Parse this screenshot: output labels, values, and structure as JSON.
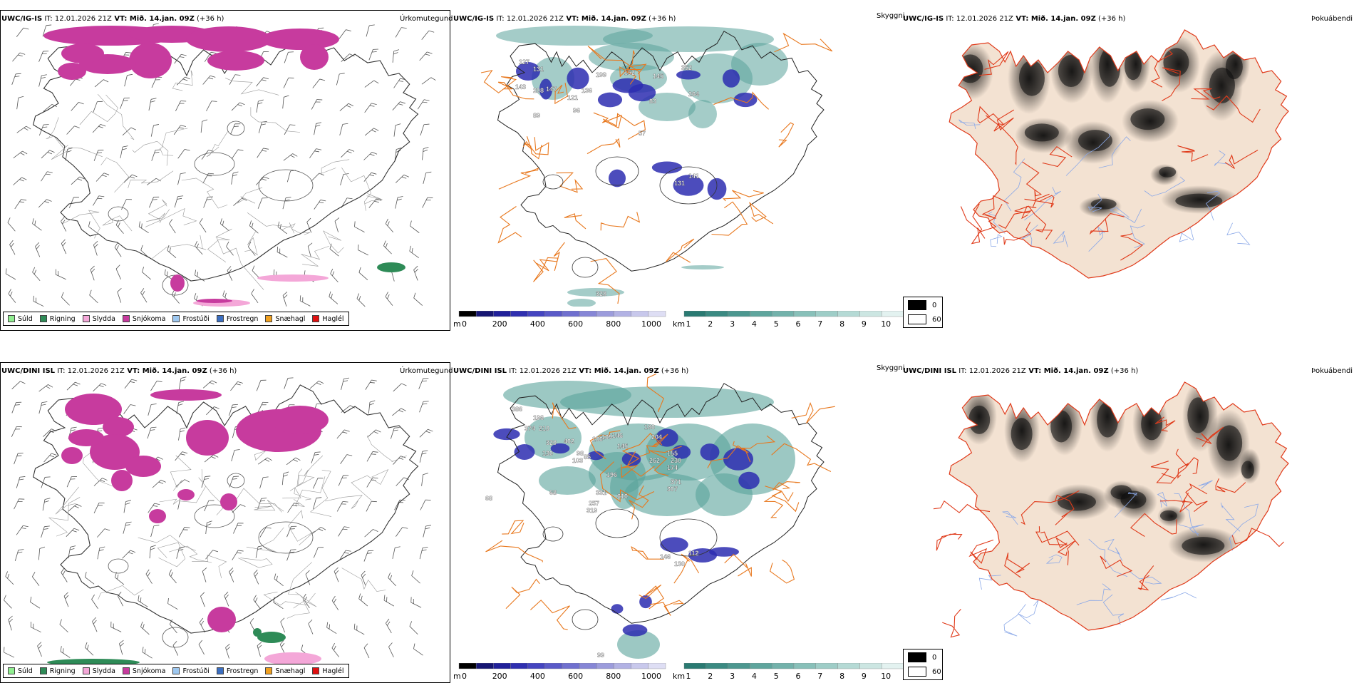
{
  "rows": [
    {
      "model": "UWC/IG-IS",
      "it_label": "IT:",
      "it_value": "12.01.2026 21Z",
      "vt_label": "VT:",
      "vt_value": "Mið. 14.jan. 09Z",
      "lead": "(+36 h)",
      "panel_types": [
        "Úrkomutegund",
        "Skyggni",
        "Þokuábendi"
      ],
      "vis_labels": [
        {
          "v": "127"
        },
        {
          "v": "131"
        },
        {
          "v": "143"
        },
        {
          "v": "208"
        },
        {
          "v": "147"
        },
        {
          "v": "89"
        },
        {
          "v": "121"
        },
        {
          "v": "96"
        },
        {
          "v": "136"
        },
        {
          "v": "199"
        },
        {
          "v": "152"
        },
        {
          "v": "145"
        },
        {
          "v": "352"
        },
        {
          "v": "264"
        },
        {
          "v": "83"
        },
        {
          "v": "57"
        },
        {
          "v": "131"
        },
        {
          "v": "141"
        },
        {
          "v": "328"
        }
      ]
    },
    {
      "model": "UWC/DINI ISL",
      "it_label": "IT:",
      "it_value": "12.01.2026 21Z",
      "vt_label": "VT:",
      "vt_value": "Mið. 14.jan. 09Z",
      "lead": "(+36 h)",
      "panel_types": [
        "Úrkomutegund",
        "Skyggni",
        "Þokuábendi"
      ],
      "vis_labels": [
        {
          "v": "386"
        },
        {
          "v": "196"
        },
        {
          "v": "374"
        },
        {
          "v": "210"
        },
        {
          "v": "320"
        },
        {
          "v": "130"
        },
        {
          "v": "402"
        },
        {
          "v": "98"
        },
        {
          "v": "103"
        },
        {
          "v": "85"
        },
        {
          "v": "100"
        },
        {
          "v": "109"
        },
        {
          "v": "146"
        },
        {
          "v": "145"
        },
        {
          "v": "180"
        },
        {
          "v": "204"
        },
        {
          "v": "155"
        },
        {
          "v": "230"
        },
        {
          "v": "174"
        },
        {
          "v": "262"
        },
        {
          "v": "196"
        },
        {
          "v": "371"
        },
        {
          "v": "307"
        },
        {
          "v": "68"
        },
        {
          "v": "331"
        },
        {
          "v": "257"
        },
        {
          "v": "319"
        },
        {
          "v": "610"
        },
        {
          "v": "146"
        },
        {
          "v": "130"
        },
        {
          "v": "112"
        },
        {
          "v": "99"
        },
        {
          "v": "68"
        }
      ]
    }
  ],
  "precip_legend": [
    {
      "label": "Súld",
      "color": "#90ee90"
    },
    {
      "label": "Rigning",
      "color": "#2e8b57"
    },
    {
      "label": "Slydda",
      "color": "#f4a7d8"
    },
    {
      "label": "Snjókoma",
      "color": "#c73b9e"
    },
    {
      "label": "Frostúði",
      "color": "#9ec8f0"
    },
    {
      "label": "Frostregn",
      "color": "#3b6fc2"
    },
    {
      "label": "Snæhagl",
      "color": "#f0a020"
    },
    {
      "label": "Haglél",
      "color": "#e01010"
    }
  ],
  "cloud_colorbar": {
    "unit": "m",
    "ticks": [
      "0",
      "200",
      "400",
      "600",
      "800",
      "1000"
    ],
    "colors": [
      "#000000",
      "#161673",
      "#20209a",
      "#2f2fb0",
      "#4545c0",
      "#5a5ac8",
      "#7070cf",
      "#8686d6",
      "#9c9cdc",
      "#b2b2e4",
      "#c8c8ec",
      "#dedef4"
    ]
  },
  "vis_colorbar": {
    "unit": "km",
    "ticks": [
      "1",
      "2",
      "3",
      "4",
      "5",
      "6",
      "7",
      "8",
      "9",
      "10"
    ],
    "colors": [
      "#2a7a72",
      "#3b8a82",
      "#4c978f",
      "#5fa59d",
      "#73b2ab",
      "#88c0b9",
      "#9ecdc7",
      "#b5dad5",
      "#cce6e2",
      "#e3f2f0"
    ]
  },
  "fog_legend": [
    {
      "label": "0",
      "color": "#000000"
    },
    {
      "label": "60",
      "color": "#ffffff"
    }
  ],
  "colors": {
    "snow": "#c73b9e",
    "rain": "#2e8b57",
    "sleet": "#f4a7d8",
    "vis": "#5aa39b",
    "cloud": "#2d2db0",
    "roads": "#e8781e",
    "land_fog": "#f3e2d2",
    "road_red": "#e03a1a",
    "river": "#8aa8e8"
  }
}
